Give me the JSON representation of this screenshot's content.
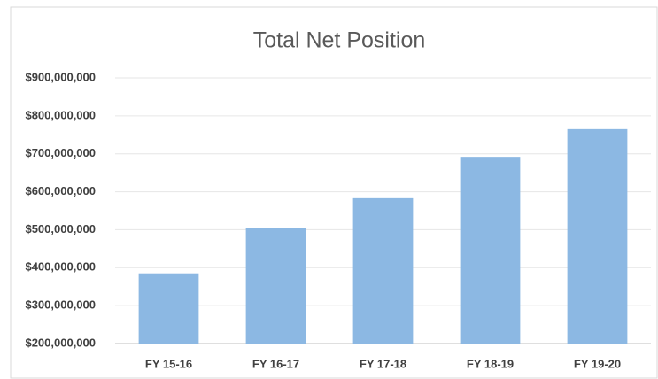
{
  "chart_data": {
    "type": "bar",
    "title": "Total Net Position",
    "categories": [
      "FY 15-16",
      "FY 16-17",
      "FY 17-18",
      "FY 18-19",
      "FY 19-20"
    ],
    "values": [
      385000000,
      505000000,
      583000000,
      692000000,
      765000000
    ],
    "color": "#8cb8e3",
    "ylim": [
      200000000,
      900000000
    ],
    "yticks": [
      {
        "value": 200000000,
        "label": "$200,000,000"
      },
      {
        "value": 300000000,
        "label": "$300,000,000"
      },
      {
        "value": 400000000,
        "label": "$400,000,000"
      },
      {
        "value": 500000000,
        "label": "$500,000,000"
      },
      {
        "value": 600000000,
        "label": "$600,000,000"
      },
      {
        "value": 700000000,
        "label": "$700,000,000"
      },
      {
        "value": 800000000,
        "label": "$800,000,000"
      },
      {
        "value": 900000000,
        "label": "$900,000,000"
      }
    ],
    "grid": true
  }
}
